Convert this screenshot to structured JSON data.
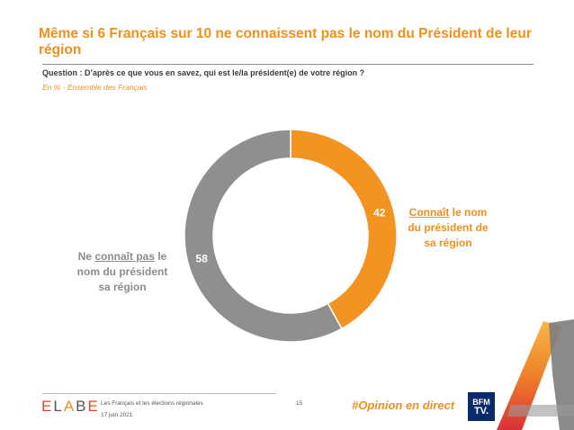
{
  "header": {
    "title": "Même si 6 Français sur 10 ne connaissent pas le nom du Président de leur région",
    "question": "Question : D’après ce que vous en savez, qui est le/la président(e) de votre région ?",
    "basis": "En % - Ensemble des Français"
  },
  "chart_data": {
    "type": "pie",
    "donut": true,
    "categories": [
      "Connaît le nom du président de sa région",
      "Ne connaît pas le nom du président sa région"
    ],
    "values": [
      42,
      58
    ],
    "unit": "%",
    "colors": [
      "#F39322",
      "#8F8F8F"
    ],
    "labels": {
      "knows": {
        "underlined": "Connaît",
        "rest_line1": " le nom",
        "line2": "du président de",
        "line3": "sa région"
      },
      "not_knows": {
        "line1_prefix": "Ne ",
        "underlined": "connaît pas",
        "line1_suffix": " le",
        "line2": "nom du président",
        "line3": "sa région"
      }
    }
  },
  "footer": {
    "logo_text": [
      "E",
      "L",
      "A",
      "B",
      "E"
    ],
    "study": "Les Français et les élections régionales",
    "date": "17 juin 2021",
    "page": "15",
    "hashtag": "#Opinion en direct",
    "partner_logo": [
      "BFM",
      "TV."
    ]
  },
  "colors": {
    "accent": "#F0901C",
    "grey": "#8F8F8F",
    "partner": "#0A2A6B"
  }
}
